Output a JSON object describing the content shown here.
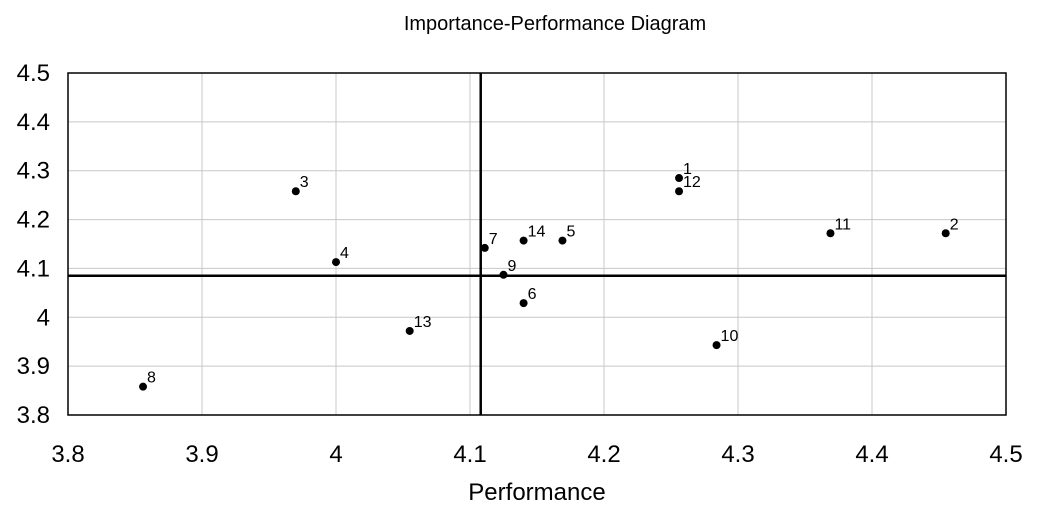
{
  "chart_data": {
    "type": "scatter",
    "title": "Importance-Performance Diagram",
    "xlabel": "Performance",
    "ylabel": "",
    "xlim": [
      3.8,
      4.5
    ],
    "ylim": [
      3.8,
      4.5
    ],
    "xticks": [
      3.8,
      3.9,
      4,
      4.1,
      4.2,
      4.3,
      4.4,
      4.5
    ],
    "yticks": [
      3.8,
      3.9,
      4,
      4.1,
      4.2,
      4.3,
      4.4,
      4.5
    ],
    "xtick_labels": [
      "3.8",
      "3.9",
      "4",
      "4.1",
      "4.2",
      "4.3",
      "4.4",
      "4.5"
    ],
    "ytick_labels": [
      "3.8",
      "3.9",
      "4",
      "4.1",
      "4.2",
      "4.3",
      "4.4",
      "4.5"
    ],
    "grid": true,
    "reference_lines": {
      "x": 4.108,
      "y": 4.085
    },
    "points": [
      {
        "label": "1",
        "x": 4.256,
        "y": 4.285
      },
      {
        "label": "2",
        "x": 4.455,
        "y": 4.172
      },
      {
        "label": "3",
        "x": 3.97,
        "y": 4.258
      },
      {
        "label": "4",
        "x": 4.0,
        "y": 4.113
      },
      {
        "label": "5",
        "x": 4.169,
        "y": 4.157
      },
      {
        "label": "6",
        "x": 4.14,
        "y": 4.029
      },
      {
        "label": "7",
        "x": 4.111,
        "y": 4.142
      },
      {
        "label": "8",
        "x": 3.856,
        "y": 3.858
      },
      {
        "label": "9",
        "x": 4.125,
        "y": 4.087
      },
      {
        "label": "10",
        "x": 4.284,
        "y": 3.943
      },
      {
        "label": "11",
        "x": 4.369,
        "y": 4.172
      },
      {
        "label": "12",
        "x": 4.256,
        "y": 4.258
      },
      {
        "label": "13",
        "x": 4.055,
        "y": 3.972
      },
      {
        "label": "14",
        "x": 4.14,
        "y": 4.157
      }
    ]
  }
}
